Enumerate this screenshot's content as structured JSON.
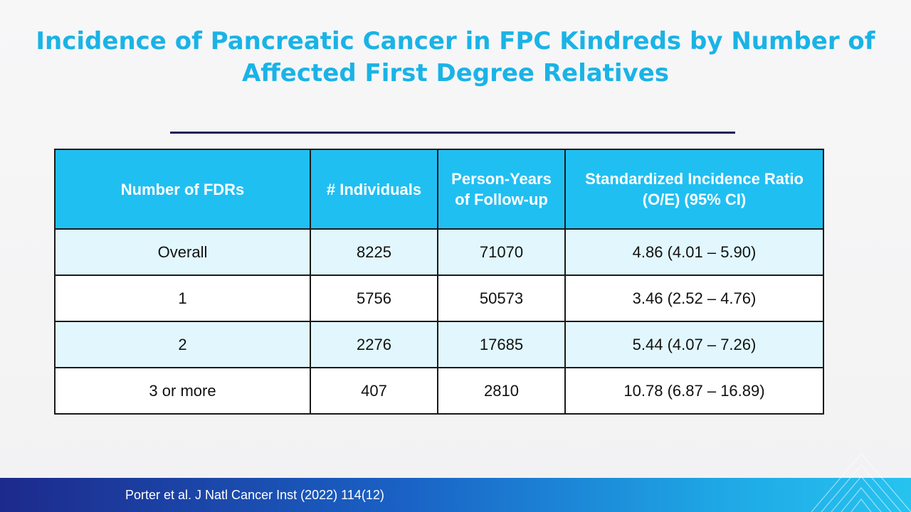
{
  "slide": {
    "title_line1": "Incidence of Pancreatic Cancer in FPC Kindreds by Number of",
    "title_line2": "Affected First Degree Relatives"
  },
  "table": {
    "headers": [
      {
        "line1": "Number of FDRs",
        "line2": ""
      },
      {
        "line1": "# Individuals",
        "line2": ""
      },
      {
        "line1": "Person-Years",
        "line2": "of Follow-up"
      },
      {
        "line1": "Standardized Incidence Ratio",
        "line2": "(O/E) (95% CI)"
      }
    ],
    "rows": [
      {
        "fdrs": "Overall",
        "individuals": "8225",
        "person_years": "71070",
        "sir": "4.86 (4.01 – 5.90)"
      },
      {
        "fdrs": "1",
        "individuals": "5756",
        "person_years": "50573",
        "sir": "3.46 (2.52 – 4.76)"
      },
      {
        "fdrs": "2",
        "individuals": "2276",
        "person_years": "17685",
        "sir": "5.44 (4.07 – 7.26)"
      },
      {
        "fdrs": "3 or more",
        "individuals": "407",
        "person_years": "2810",
        "sir": "10.78 (6.87 – 16.89)"
      }
    ]
  },
  "footer": {
    "citation": "Porter et al. J Natl Cancer Inst (2022) 114(12)"
  },
  "colors": {
    "title": "#1ab3e6",
    "header_bg": "#20bff2",
    "row_shaded": "#e1f7fd",
    "rule": "#1a1a5c"
  }
}
